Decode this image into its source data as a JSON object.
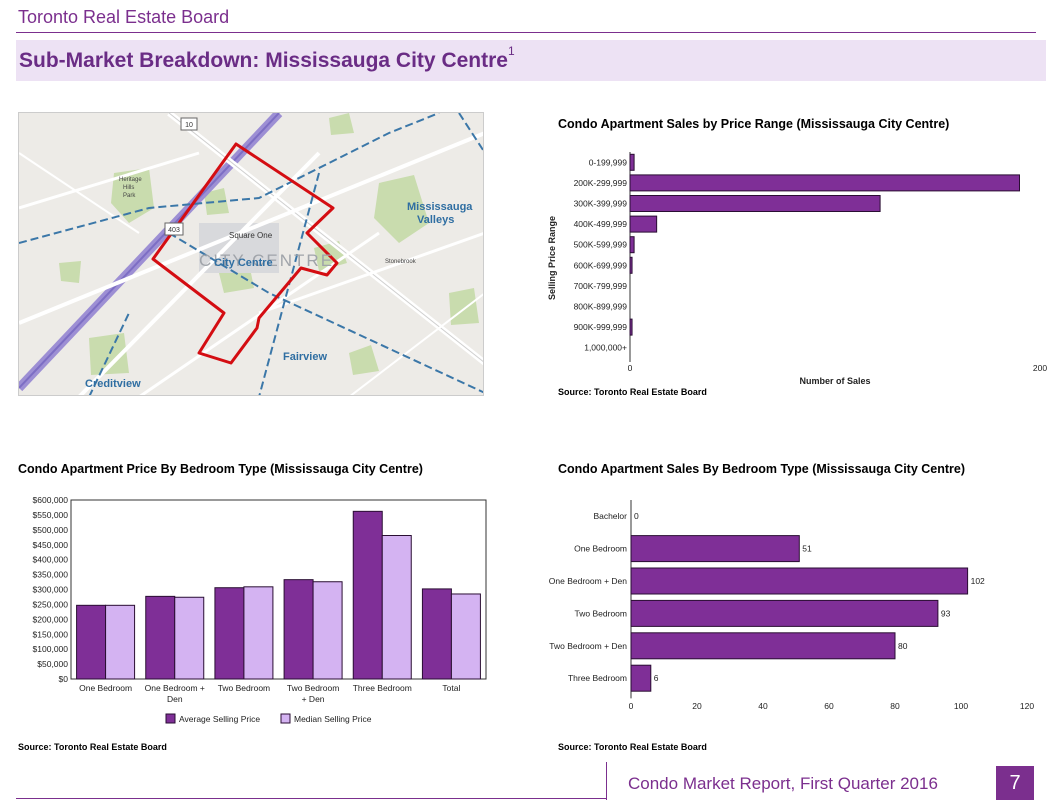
{
  "header": {
    "org": "Toronto Real Estate Board",
    "title": "Sub-Market Breakdown: Mississauga City Centre",
    "title_sup": "1"
  },
  "map": {
    "labels": {
      "mississauga": "Mississauga",
      "valleys": "Valleys",
      "city_centre": "City Centre",
      "city_centre_faded": "CITY CENTRE",
      "square_one": "Square One",
      "fairview": "Fairview",
      "creditview": "Creditview",
      "heritage": "Heritage",
      "hills": "Hills",
      "park": "Park",
      "stonebrook": "Stonebrook",
      "route_10": "10",
      "route_403": "403"
    }
  },
  "colors": {
    "bar_primary": "#7f2f97",
    "bar_secondary": "#d4b3f2",
    "title_purple": "#6a2c85",
    "boundary": "#d40d12"
  },
  "charts": {
    "price_range": {
      "title": "Condo Apartment Sales by Price Range (Mississauga City Centre)",
      "source": "Source: Toronto Real Estate Board"
    },
    "bedroom_price": {
      "title": "Condo Apartment Price By Bedroom Type (Mississauga City Centre)",
      "source": "Source: Toronto Real Estate Board"
    },
    "bedroom_sales": {
      "title": "Condo Apartment Sales By Bedroom Type (Mississauga City Centre)",
      "source": "Source: Toronto Real Estate Board"
    }
  },
  "chart_data": [
    {
      "id": "price_range",
      "type": "bar",
      "orientation": "horizontal",
      "title": "Condo Apartment Sales by Price Range (Mississauga City Centre)",
      "categories": [
        "0-199,999",
        "200K-299,999",
        "300K-399,999",
        "400K-499,999",
        "500K-599,999",
        "600K-699,999",
        "700K-799,999",
        "800K-899,999",
        "900K-999,999",
        "1,000,000+"
      ],
      "values": [
        2,
        190,
        122,
        13,
        2,
        1,
        0,
        0,
        1,
        0
      ],
      "xlabel": "Number of Sales",
      "ylabel": "Selling Price Range",
      "xlim": [
        0,
        200
      ],
      "xticks": [
        "0",
        "200"
      ],
      "color": "#7f2f97"
    },
    {
      "id": "bedroom_price",
      "type": "bar",
      "orientation": "vertical",
      "title": "Condo Apartment Price By Bedroom Type (Mississauga City Centre)",
      "categories": [
        "One Bedroom",
        "One Bedroom + Den",
        "Two Bedroom",
        "Two Bedroom + Den",
        "Three Bedroom",
        "Total"
      ],
      "category_lines": [
        [
          "One Bedroom"
        ],
        [
          "One Bedroom +",
          "Den"
        ],
        [
          "Two Bedroom"
        ],
        [
          "Two Bedroom",
          "+ Den"
        ],
        [
          "Three Bedroom"
        ],
        [
          "Total"
        ]
      ],
      "series": [
        {
          "name": "Average Selling Price",
          "values": [
            247000,
            277000,
            306000,
            333000,
            562000,
            302000
          ],
          "color": "#7f2f97"
        },
        {
          "name": "Median Selling Price",
          "values": [
            247000,
            274000,
            309000,
            326000,
            481000,
            285000
          ],
          "color": "#d4b3f2"
        }
      ],
      "ylim": [
        0,
        600000
      ],
      "yticks": [
        "$0",
        "$50,000",
        "$100,000",
        "$150,000",
        "$200,000",
        "$250,000",
        "$300,000",
        "$350,000",
        "$400,000",
        "$450,000",
        "$500,000",
        "$550,000",
        "$600,000"
      ],
      "legend": "bottom"
    },
    {
      "id": "bedroom_sales",
      "type": "bar",
      "orientation": "horizontal",
      "title": "Condo Apartment Sales By Bedroom Type (Mississauga City Centre)",
      "categories": [
        "Bachelor",
        "One Bedroom",
        "One Bedroom + Den",
        "Two Bedroom",
        "Two Bedroom + Den",
        "Three Bedroom"
      ],
      "values": [
        0,
        51,
        102,
        93,
        80,
        6
      ],
      "data_labels": [
        "0",
        "51",
        "102",
        "93",
        "80",
        "6"
      ],
      "xlim": [
        0,
        120
      ],
      "xticks": [
        "0",
        "20",
        "40",
        "60",
        "80",
        "100",
        "120"
      ],
      "color": "#7f2f97"
    }
  ],
  "footer": {
    "report": "Condo Market Report, First Quarter 2016",
    "page": "7"
  }
}
